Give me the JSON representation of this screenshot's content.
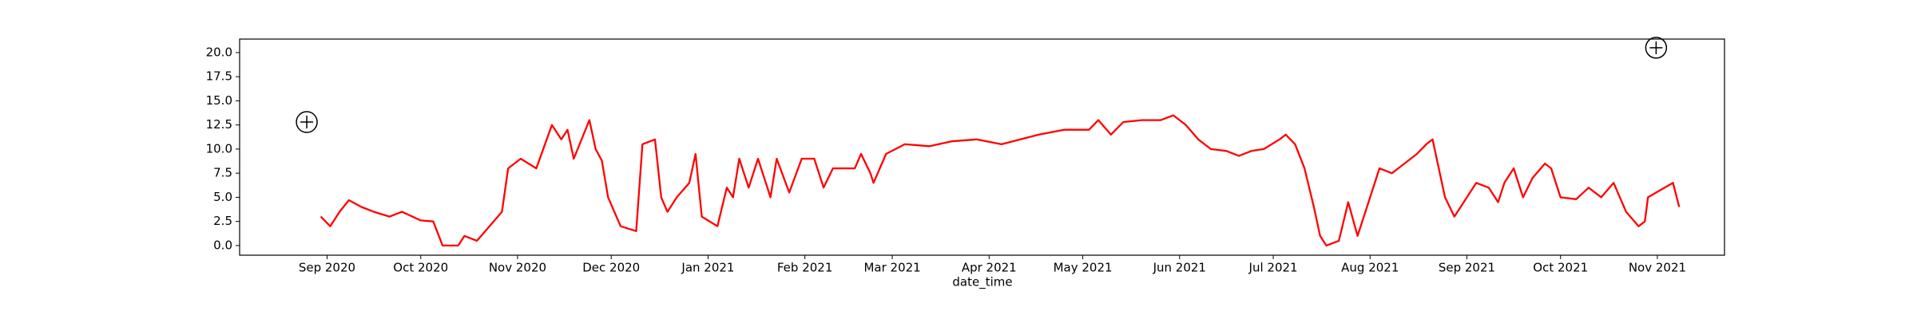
{
  "chart_data": {
    "type": "line",
    "xlabel": "date_time",
    "series": [
      {
        "color": "#ff0000",
        "x": [
          18504,
          18507,
          18510,
          18513,
          18517,
          18521,
          18526,
          18530,
          18536,
          18540,
          18543,
          18548,
          18550,
          18554,
          18558,
          18562,
          18564,
          18568,
          18573,
          18578,
          18581,
          18583,
          18585,
          18590,
          18592,
          18594,
          18596,
          18600,
          18605,
          18607,
          18611,
          18613,
          18615,
          18618,
          18622,
          18624,
          18626,
          18631,
          18634,
          18636,
          18638,
          18641,
          18644,
          18646,
          18648,
          18650,
          18654,
          18658,
          18662,
          18665,
          18668,
          18675,
          18677,
          18680,
          18681,
          18685,
          18691,
          18699,
          18706,
          18714,
          18722,
          18728,
          18734,
          18742,
          18750,
          18753,
          18757,
          18761,
          18767,
          18773,
          18777,
          18781,
          18785,
          18789,
          18794,
          18798,
          18802,
          18806,
          18811,
          18813,
          18816,
          18819,
          18822,
          18824,
          18826,
          18830,
          18833,
          18836,
          18839,
          18843,
          18847,
          18851,
          18855,
          18858,
          18860,
          18862,
          18864,
          18867,
          18871,
          18874,
          18878,
          18881,
          18883,
          18886,
          18889,
          18892,
          18896,
          18898,
          18901,
          18906,
          18910,
          18914,
          18918,
          18922,
          18926,
          18928,
          18929,
          18937,
          18939
        ],
        "values": [
          3,
          2,
          3.5,
          4.7,
          4,
          3.5,
          3,
          3.5,
          2.6,
          2.5,
          0,
          0,
          1,
          0.5,
          2,
          3.5,
          8,
          9,
          8,
          12.5,
          11,
          12,
          9,
          13,
          10,
          8.8,
          5,
          2,
          1.5,
          10.5,
          11,
          5,
          3.5,
          5,
          6.5,
          9.5,
          3,
          2,
          6,
          5,
          9,
          6,
          9,
          7,
          5,
          9,
          5.5,
          9,
          9,
          6,
          8,
          8,
          9.5,
          7.5,
          6.5,
          9.5,
          10.5,
          10.3,
          10.8,
          11,
          10.5,
          11,
          11.5,
          12,
          12,
          13,
          11.5,
          12.8,
          13,
          13,
          13.5,
          12.5,
          11,
          10,
          9.8,
          9.3,
          9.8,
          10,
          11,
          11.5,
          10.5,
          8,
          4,
          1,
          0,
          0.5,
          4.5,
          1,
          4,
          8,
          7.5,
          8.5,
          9.5,
          10.5,
          11,
          8,
          5,
          3,
          5,
          6.5,
          6,
          4.5,
          6.5,
          8,
          5,
          7,
          8.5,
          8,
          5,
          4.8,
          6,
          5,
          6.5,
          3.5,
          2,
          2.5,
          5,
          6.5,
          4
        ]
      }
    ],
    "markers": {
      "x": [
        18499.5,
        18931.6
      ],
      "y": [
        12.8,
        20.5
      ]
    },
    "xlim": [
      18478,
      18953.5
    ],
    "ylim": [
      -1.0,
      21.4
    ],
    "xticks": [
      {
        "value": 18506,
        "label": "Sep 2020"
      },
      {
        "value": 18536,
        "label": "Oct 2020"
      },
      {
        "value": 18567,
        "label": "Nov 2020"
      },
      {
        "value": 18597,
        "label": "Dec 2020"
      },
      {
        "value": 18628,
        "label": "Jan 2021"
      },
      {
        "value": 18659,
        "label": "Feb 2021"
      },
      {
        "value": 18687,
        "label": "Mar 2021"
      },
      {
        "value": 18718,
        "label": "Apr 2021"
      },
      {
        "value": 18748,
        "label": "May 2021"
      },
      {
        "value": 18779,
        "label": "Jun 2021"
      },
      {
        "value": 18809,
        "label": "Jul 2021"
      },
      {
        "value": 18840,
        "label": "Aug 2021"
      },
      {
        "value": 18871,
        "label": "Sep 2021"
      },
      {
        "value": 18901,
        "label": "Oct 2021"
      },
      {
        "value": 18932,
        "label": "Nov 2021"
      }
    ],
    "yticks": [
      {
        "value": 0,
        "label": "0.0"
      },
      {
        "value": 2.5,
        "label": "2.5"
      },
      {
        "value": 5,
        "label": "5.0"
      },
      {
        "value": 7.5,
        "label": "7.5"
      },
      {
        "value": 10,
        "label": "10.0"
      },
      {
        "value": 12.5,
        "label": "12.5"
      },
      {
        "value": 15,
        "label": "15.0"
      },
      {
        "value": 17.5,
        "label": "17.5"
      },
      {
        "value": 20,
        "label": "20.0"
      }
    ]
  }
}
